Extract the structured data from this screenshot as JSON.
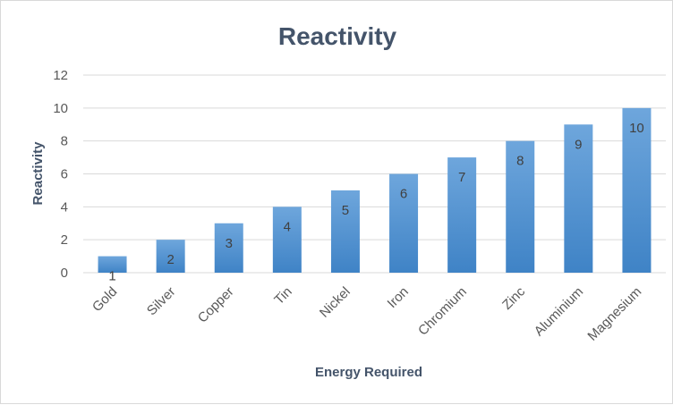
{
  "chart_data": {
    "type": "bar",
    "title": "Reactivity",
    "xlabel": "Energy Required",
    "ylabel": "Reactivity",
    "categories": [
      "Gold",
      "Silver",
      "Copper",
      "Tin",
      "Nickel",
      "Iron",
      "Chromium",
      "Zinc",
      "Aluminium",
      "Magnesium"
    ],
    "values": [
      1,
      2,
      3,
      4,
      5,
      6,
      7,
      8,
      9,
      10
    ],
    "data_labels": [
      "1",
      "2",
      "3",
      "4",
      "5",
      "6",
      "7",
      "8",
      "9",
      "10"
    ],
    "ylim": [
      0,
      12
    ],
    "yticks": [
      "0",
      "2",
      "4",
      "6",
      "8",
      "10",
      "12"
    ],
    "grid": true,
    "legend": "none",
    "colors": {
      "bar_top": "#6ea6dc",
      "bar_bottom": "#3f83c6",
      "grid": "#d9d9d9",
      "text": "#595959",
      "title": "#44546a"
    }
  }
}
